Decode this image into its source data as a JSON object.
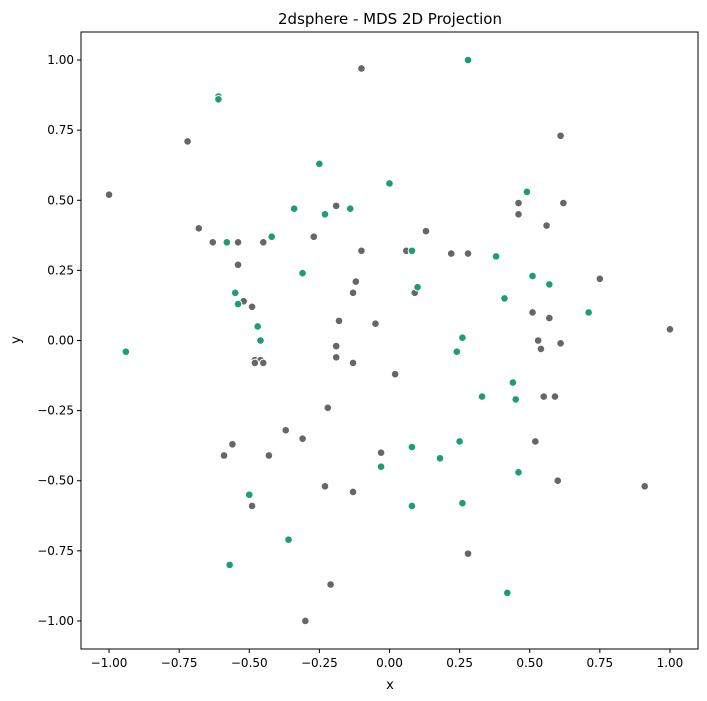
{
  "chart_data": {
    "type": "scatter",
    "title": "2dsphere - MDS 2D Projection",
    "xlabel": "x",
    "ylabel": "y",
    "xlim": [
      -1.1,
      1.1
    ],
    "ylim": [
      -1.1,
      1.1
    ],
    "xticks": [
      -1.0,
      -0.75,
      -0.5,
      -0.25,
      0.0,
      0.25,
      0.5,
      0.75,
      1.0
    ],
    "yticks": [
      -1.0,
      -0.75,
      -0.5,
      -0.25,
      0.0,
      0.25,
      0.5,
      0.75,
      1.0
    ],
    "xtick_labels": [
      "−1.00",
      "−0.75",
      "−0.50",
      "−0.25",
      "0.00",
      "0.25",
      "0.50",
      "0.75",
      "1.00"
    ],
    "ytick_labels": [
      "−1.00",
      "−0.75",
      "−0.50",
      "−0.25",
      "0.00",
      "0.25",
      "0.50",
      "0.75",
      "1.00"
    ],
    "grid": false,
    "colors": {
      "gray": "#666666",
      "green": "#1b9e77"
    },
    "series": [
      {
        "color": "#666666",
        "points": [
          [
            -0.1,
            0.97
          ],
          [
            -0.72,
            0.71
          ],
          [
            -1.0,
            0.52
          ],
          [
            0.61,
            0.73
          ],
          [
            -0.68,
            0.4
          ],
          [
            -0.63,
            0.35
          ],
          [
            -0.54,
            0.35
          ],
          [
            -0.45,
            0.35
          ],
          [
            -0.27,
            0.37
          ],
          [
            -0.19,
            0.48
          ],
          [
            -0.1,
            0.32
          ],
          [
            0.06,
            0.32
          ],
          [
            0.13,
            0.39
          ],
          [
            0.22,
            0.31
          ],
          [
            0.28,
            0.31
          ],
          [
            0.46,
            0.49
          ],
          [
            0.46,
            0.45
          ],
          [
            0.56,
            0.41
          ],
          [
            0.62,
            0.49
          ],
          [
            0.75,
            0.22
          ],
          [
            -0.54,
            0.27
          ],
          [
            -0.52,
            0.14
          ],
          [
            -0.49,
            0.12
          ],
          [
            -0.12,
            0.21
          ],
          [
            -0.13,
            0.17
          ],
          [
            0.09,
            0.17
          ],
          [
            -0.18,
            0.07
          ],
          [
            -0.05,
            0.06
          ],
          [
            0.51,
            0.1
          ],
          [
            0.57,
            0.08
          ],
          [
            0.53,
            0.0
          ],
          [
            0.54,
            -0.03
          ],
          [
            0.61,
            -0.01
          ],
          [
            1.0,
            0.04
          ],
          [
            -0.19,
            -0.02
          ],
          [
            -0.19,
            -0.06
          ],
          [
            -0.13,
            -0.08
          ],
          [
            -0.48,
            -0.07
          ],
          [
            -0.46,
            -0.07
          ],
          [
            -0.48,
            -0.08
          ],
          [
            -0.45,
            -0.08
          ],
          [
            0.02,
            -0.12
          ],
          [
            0.55,
            -0.2
          ],
          [
            0.59,
            -0.2
          ],
          [
            -0.22,
            -0.24
          ],
          [
            -0.37,
            -0.32
          ],
          [
            -0.31,
            -0.35
          ],
          [
            -0.56,
            -0.37
          ],
          [
            -0.03,
            -0.4
          ],
          [
            0.52,
            -0.36
          ],
          [
            -0.59,
            -0.41
          ],
          [
            -0.43,
            -0.41
          ],
          [
            -0.23,
            -0.52
          ],
          [
            -0.13,
            -0.54
          ],
          [
            0.6,
            -0.5
          ],
          [
            0.91,
            -0.52
          ],
          [
            -0.49,
            -0.59
          ],
          [
            0.28,
            -0.76
          ],
          [
            -0.21,
            -0.87
          ],
          [
            -0.3,
            -1.0
          ]
        ]
      },
      {
        "color": "#1b9e77",
        "points": [
          [
            0.28,
            1.0
          ],
          [
            -0.61,
            0.87
          ],
          [
            -0.61,
            0.86
          ],
          [
            -0.25,
            0.63
          ],
          [
            0.0,
            0.56
          ],
          [
            0.49,
            0.53
          ],
          [
            -0.34,
            0.47
          ],
          [
            -0.23,
            0.45
          ],
          [
            -0.14,
            0.47
          ],
          [
            -0.58,
            0.35
          ],
          [
            -0.42,
            0.37
          ],
          [
            0.08,
            0.32
          ],
          [
            0.38,
            0.3
          ],
          [
            -0.31,
            0.24
          ],
          [
            0.51,
            0.23
          ],
          [
            0.57,
            0.2
          ],
          [
            -0.55,
            0.17
          ],
          [
            -0.54,
            0.13
          ],
          [
            0.1,
            0.19
          ],
          [
            0.41,
            0.15
          ],
          [
            0.71,
            0.1
          ],
          [
            -0.47,
            0.05
          ],
          [
            -0.46,
            0.0
          ],
          [
            0.26,
            0.01
          ],
          [
            -0.94,
            -0.04
          ],
          [
            0.24,
            -0.04
          ],
          [
            0.44,
            -0.15
          ],
          [
            0.33,
            -0.2
          ],
          [
            0.45,
            -0.21
          ],
          [
            0.08,
            -0.38
          ],
          [
            0.25,
            -0.36
          ],
          [
            0.18,
            -0.42
          ],
          [
            0.46,
            -0.47
          ],
          [
            -0.03,
            -0.45
          ],
          [
            -0.5,
            -0.55
          ],
          [
            0.26,
            -0.58
          ],
          [
            0.08,
            -0.59
          ],
          [
            -0.36,
            -0.71
          ],
          [
            -0.57,
            -0.8
          ],
          [
            0.42,
            -0.9
          ]
        ]
      }
    ]
  }
}
